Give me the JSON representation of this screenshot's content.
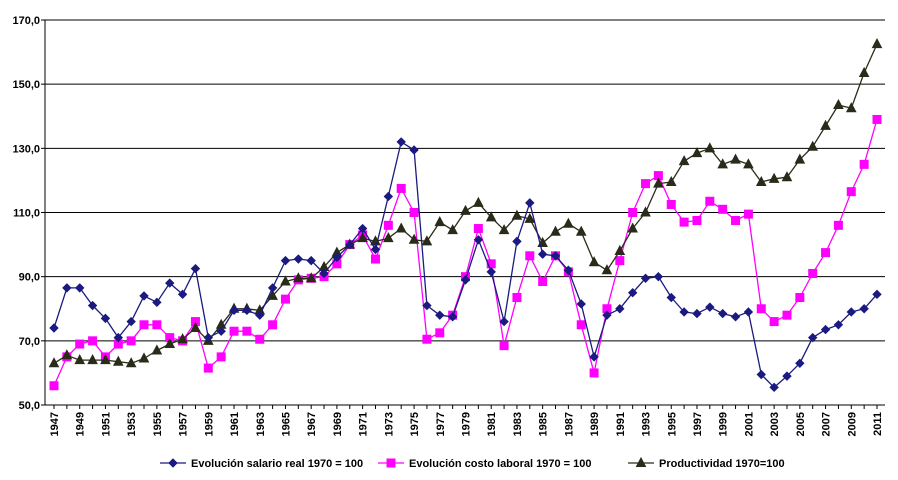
{
  "chart_data": {
    "type": "line",
    "title": "",
    "xlabel": "",
    "ylabel": "",
    "ylim": [
      50,
      170
    ],
    "y_ticks": [
      "50,0",
      "70,0",
      "90,0",
      "110,0",
      "130,0",
      "150,0",
      "170,0"
    ],
    "grid": "horizontal",
    "legend_position": "bottom",
    "x": [
      1947,
      1948,
      1949,
      1950,
      1951,
      1952,
      1953,
      1954,
      1955,
      1956,
      1957,
      1958,
      1959,
      1960,
      1961,
      1962,
      1963,
      1964,
      1965,
      1966,
      1967,
      1968,
      1969,
      1970,
      1971,
      1972,
      1973,
      1974,
      1975,
      1976,
      1977,
      1978,
      1979,
      1980,
      1981,
      1982,
      1983,
      1984,
      1985,
      1986,
      1987,
      1988,
      1989,
      1990,
      1991,
      1992,
      1993,
      1994,
      1995,
      1996,
      1997,
      1998,
      1999,
      2000,
      2001,
      2002,
      2003,
      2004,
      2005,
      2006,
      2007,
      2008,
      2009,
      2010,
      2011
    ],
    "x_tick_labels": [
      "1947",
      "1949",
      "1951",
      "1953",
      "1955",
      "1957",
      "1959",
      "1961",
      "1963",
      "1965",
      "1967",
      "1969",
      "1971",
      "1973",
      "1975",
      "1977",
      "1979",
      "1981",
      "1983",
      "1985",
      "1987",
      "1989",
      "1991",
      "1993",
      "1995",
      "1997",
      "1999",
      "2001",
      "2003",
      "2005",
      "2007",
      "2009",
      "2011"
    ],
    "series": [
      {
        "name": "Evolución salario real 1970 = 100",
        "color": "#1a1a80",
        "marker": "diamond",
        "values": [
          74,
          86.5,
          86.5,
          81,
          77,
          71,
          76,
          84,
          82,
          88,
          84.5,
          92.5,
          71,
          73,
          79.5,
          79.5,
          78,
          86.5,
          95,
          95.5,
          95,
          91,
          96,
          100,
          105,
          98.5,
          115,
          132,
          129.5,
          81,
          78,
          77.5,
          89,
          101.5,
          91.5,
          76,
          101,
          113,
          97,
          96.5,
          92,
          81.5,
          65,
          78,
          80,
          85,
          89.5,
          90,
          83.5,
          79,
          78.5,
          80.5,
          78.5,
          77.5,
          79,
          59.5,
          55.5,
          59,
          63,
          71,
          73.5,
          75,
          79,
          80,
          84.5
        ]
      },
      {
        "name": "Evolución costo laboral 1970 = 100",
        "color": "#ff00ff",
        "marker": "square",
        "values": [
          56,
          65,
          69,
          70,
          65,
          69,
          70,
          75,
          75,
          71,
          70,
          76,
          61.5,
          65,
          73,
          73,
          70.5,
          75,
          83,
          89,
          89.5,
          90,
          94,
          100,
          103,
          95.5,
          106,
          117.5,
          110,
          70.5,
          72.5,
          78,
          90,
          105,
          94,
          68.5,
          83.5,
          96.5,
          88.5,
          96.5,
          91.5,
          75,
          60,
          80,
          95,
          110,
          119,
          121.5,
          112.5,
          107,
          107.5,
          113.5,
          111,
          107.5,
          109.5,
          80,
          76,
          78,
          83.5,
          91,
          97.5,
          106,
          116.5,
          125,
          139
        ]
      },
      {
        "name": "Productividad 1970=100",
        "color": "#2b2b1a",
        "marker": "triangle",
        "values": [
          63,
          65.5,
          64,
          64,
          64,
          63.5,
          63,
          64.5,
          67,
          69,
          70.5,
          74,
          70,
          75,
          80,
          80,
          79.5,
          84,
          88.5,
          89.5,
          89.5,
          93,
          97.5,
          100,
          102,
          101,
          102,
          105,
          101.5,
          101,
          107,
          104.5,
          110.5,
          113,
          108.5,
          104.5,
          109,
          108,
          100.5,
          104,
          106.5,
          104,
          94.5,
          92,
          98,
          105,
          110,
          119,
          119.5,
          126,
          128.5,
          130,
          125,
          126.5,
          125,
          119.5,
          120.5,
          121,
          126.5,
          130.5,
          137,
          143.5,
          142.5,
          153.5,
          162.5
        ]
      }
    ]
  }
}
